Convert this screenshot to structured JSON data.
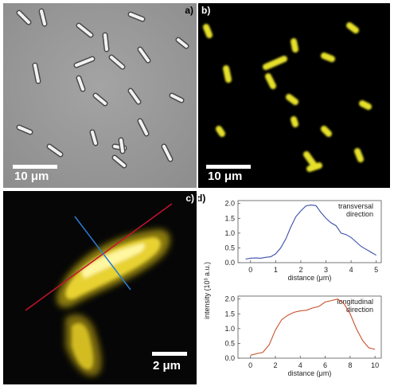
{
  "panels": {
    "a": {
      "label": "a)",
      "scale_bar": "10 μm"
    },
    "b": {
      "label": "b)",
      "scale_bar": "10 μm"
    },
    "c": {
      "label": "c)",
      "scale_bar": "2 μm"
    },
    "d": {
      "label": "d)"
    }
  },
  "chart_data": [
    {
      "type": "line",
      "annotation": [
        "transversal",
        "direction"
      ],
      "xlabel": "distance (μm)",
      "ylabel": "intensity (10³ a.u.)",
      "xlim": [
        -0.5,
        5.2
      ],
      "ylim": [
        0,
        2.1
      ],
      "xticks": [
        "0",
        "1",
        "2",
        "3",
        "4",
        "5"
      ],
      "yticks": [
        "0.0",
        "0.5",
        "1.0",
        "1.5",
        "2.0"
      ],
      "color": "#3a4ea8",
      "series": [
        {
          "x": [
            -0.2,
            0,
            0.2,
            0.4,
            0.6,
            0.8,
            1.0,
            1.2,
            1.4,
            1.6,
            1.8,
            2.0,
            2.2,
            2.4,
            2.6,
            2.8,
            3.0,
            3.2,
            3.4,
            3.6,
            3.8,
            4.0,
            4.2,
            4.4,
            4.6,
            4.8,
            5.0
          ],
          "y": [
            0.12,
            0.15,
            0.16,
            0.15,
            0.18,
            0.2,
            0.3,
            0.5,
            0.8,
            1.2,
            1.55,
            1.75,
            1.92,
            1.95,
            1.93,
            1.7,
            1.5,
            1.35,
            1.25,
            1.0,
            0.95,
            0.85,
            0.7,
            0.55,
            0.45,
            0.35,
            0.25
          ]
        }
      ]
    },
    {
      "type": "line",
      "annotation": [
        "longitudinal",
        "direction"
      ],
      "xlabel": "distance (μm)",
      "xlim": [
        -1,
        10.5
      ],
      "ylim": [
        0,
        2.1
      ],
      "xticks": [
        "0",
        "2",
        "4",
        "6",
        "8",
        "10"
      ],
      "yticks": [
        "0.0",
        "0.5",
        "1.0",
        "1.5",
        "2.0"
      ],
      "color": "#c8502a",
      "series": [
        {
          "x": [
            0,
            0.5,
            1.0,
            1.5,
            2.0,
            2.5,
            3.0,
            3.5,
            4.0,
            4.5,
            5.0,
            5.5,
            6.0,
            6.5,
            7.0,
            7.5,
            8.0,
            8.5,
            9.0,
            9.5,
            10.0
          ],
          "y": [
            0.1,
            0.15,
            0.2,
            0.45,
            0.95,
            1.3,
            1.45,
            1.55,
            1.6,
            1.62,
            1.7,
            1.75,
            1.9,
            1.95,
            2.0,
            1.85,
            1.5,
            1.0,
            0.6,
            0.35,
            0.3
          ]
        }
      ]
    }
  ]
}
